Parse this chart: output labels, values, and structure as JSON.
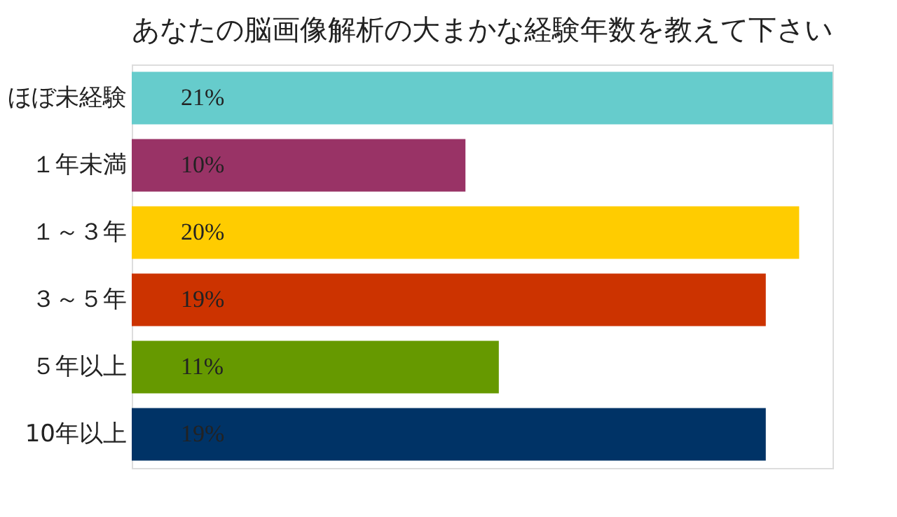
{
  "chart_data": {
    "type": "bar",
    "orientation": "horizontal",
    "title": "あなたの脳画像解析の大まかな経験年数を教えて下さい",
    "categories": [
      "ほぼ未経験",
      "１年未満",
      "１～３年",
      "３～５年",
      "５年以上",
      "10年以上"
    ],
    "values": [
      21,
      10,
      20,
      19,
      11,
      19
    ],
    "colors": [
      "#66cccc",
      "#993366",
      "#ffcc00",
      "#cc3300",
      "#669900",
      "#003366"
    ],
    "value_labels": [
      "21%",
      "10%",
      "20%",
      "19%",
      "11%",
      "19%"
    ],
    "tick_labels": "y"
  }
}
